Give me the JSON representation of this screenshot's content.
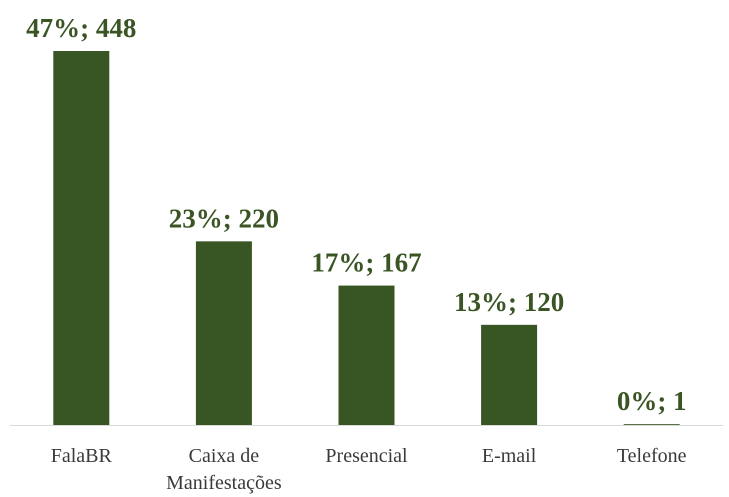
{
  "chart_data": {
    "type": "bar",
    "categories": [
      "FalaBR",
      "Caixa de Manifestações",
      "Presencial",
      "E-mail",
      "Telefone"
    ],
    "values": [
      448,
      220,
      167,
      120,
      1
    ],
    "value_labels": [
      "47%; 448",
      "23%; 220",
      "17%; 167",
      "13%; 120",
      "0%; 1"
    ],
    "color": "#375623",
    "ylim": [
      0,
      448
    ]
  }
}
